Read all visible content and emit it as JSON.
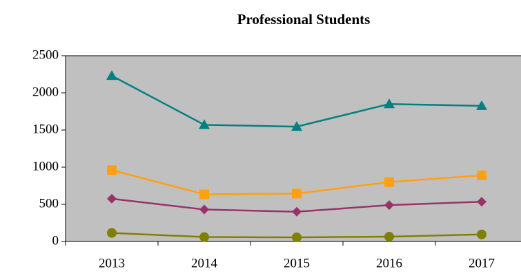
{
  "chart_data": {
    "type": "line",
    "title": "Professional Students",
    "categories": [
      "2013",
      "2014",
      "2015",
      "2016",
      "2017"
    ],
    "series": [
      {
        "color": "#008080",
        "marker": "triangle",
        "values": [
          2230,
          1570,
          1545,
          1850,
          1825
        ]
      },
      {
        "color": "#ffa010",
        "marker": "square",
        "values": [
          960,
          635,
          645,
          800,
          890
        ]
      },
      {
        "color": "#993366",
        "marker": "diamond",
        "values": [
          575,
          430,
          400,
          490,
          535
        ]
      },
      {
        "color": "#808000",
        "marker": "circle",
        "values": [
          115,
          60,
          55,
          65,
          95
        ]
      }
    ],
    "ylim": [
      0,
      2500
    ],
    "yticks": [
      0,
      500,
      1000,
      1500,
      2000,
      2500
    ],
    "grid": false,
    "plot_background": "#c0c0c0"
  }
}
